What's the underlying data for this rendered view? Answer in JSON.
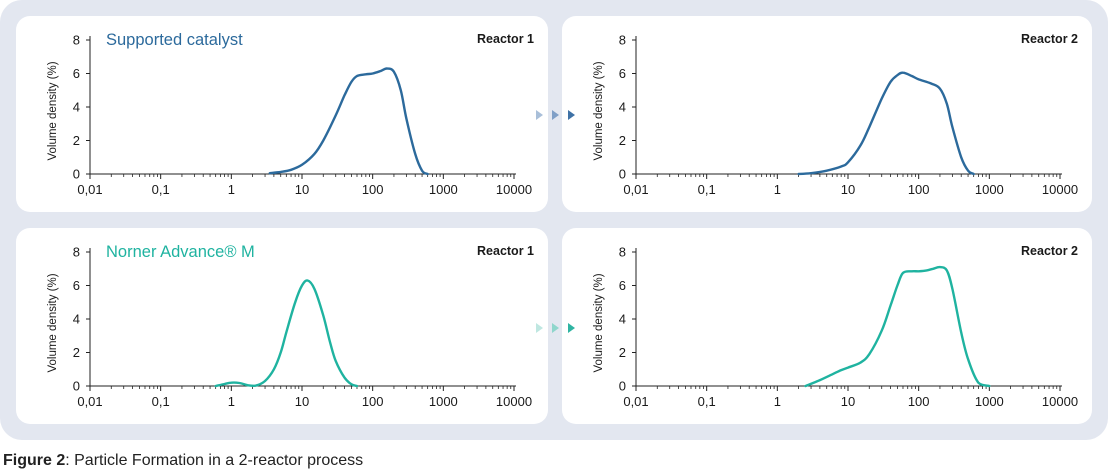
{
  "caption": {
    "label": "Figure 2",
    "text": ": Particle Formation in a 2-reactor process"
  },
  "colors": {
    "supported": "#2c6a9c",
    "norner": "#1fb3a0",
    "arrow_top": [
      "#a9bfd9",
      "#7f9fc7",
      "#3f72a6"
    ],
    "arrow_bottom": [
      "#bfe7e1",
      "#8fd6cc",
      "#2fb4a2"
    ]
  },
  "chart_data": [
    {
      "type": "line",
      "title": "Supported catalyst",
      "panel_label": "Reactor 1",
      "ylabel": "Volume density (%)",
      "xlabel": "",
      "x_scale": "log",
      "xlim": [
        0.01,
        10000
      ],
      "ylim": [
        0,
        8
      ],
      "x_ticks": [
        "0,01",
        "0,1",
        "1",
        "10",
        "100",
        "1000",
        "10000"
      ],
      "y_ticks": [
        "0",
        "2",
        "4",
        "6",
        "8"
      ],
      "series": [
        {
          "color": "#2c6a9c",
          "x": [
            3.5,
            5,
            7,
            10,
            15,
            20,
            30,
            40,
            50,
            60,
            80,
            100,
            130,
            160,
            200,
            250,
            300,
            400,
            500,
            600
          ],
          "y": [
            0.05,
            0.12,
            0.25,
            0.55,
            1.2,
            2.0,
            3.5,
            4.7,
            5.5,
            5.85,
            5.95,
            6.0,
            6.15,
            6.3,
            6.1,
            5.0,
            3.3,
            1.2,
            0.2,
            0
          ]
        }
      ]
    },
    {
      "type": "line",
      "title": "",
      "panel_label": "Reactor 2",
      "ylabel": "Volume density (%)",
      "xlabel": "",
      "x_scale": "log",
      "xlim": [
        0.01,
        10000
      ],
      "ylim": [
        0,
        8
      ],
      "x_ticks": [
        "0,01",
        "0,1",
        "1",
        "10",
        "100",
        "1000",
        "10000"
      ],
      "y_ticks": [
        "0",
        "2",
        "4",
        "6",
        "8"
      ],
      "series": [
        {
          "color": "#2c6a9c",
          "x": [
            2,
            3,
            5,
            8,
            10,
            15,
            20,
            30,
            40,
            50,
            60,
            80,
            100,
            150,
            200,
            250,
            300,
            400,
            500,
            600
          ],
          "y": [
            0,
            0.05,
            0.2,
            0.45,
            0.7,
            1.7,
            2.8,
            4.5,
            5.5,
            5.9,
            6.05,
            5.85,
            5.65,
            5.4,
            5.1,
            4.2,
            2.8,
            1.0,
            0.2,
            0
          ]
        }
      ]
    },
    {
      "type": "line",
      "title": "Norner Advance® M",
      "panel_label": "Reactor 1",
      "ylabel": "Volume density (%)",
      "xlabel": "",
      "x_scale": "log",
      "xlim": [
        0.01,
        10000
      ],
      "ylim": [
        0,
        8
      ],
      "x_ticks": [
        "0,01",
        "0,1",
        "1",
        "10",
        "100",
        "1000",
        "10000"
      ],
      "y_ticks": [
        "0",
        "2",
        "4",
        "6",
        "8"
      ],
      "series": [
        {
          "color": "#1fb3a0",
          "x": [
            0.6,
            0.8,
            1,
            1.3,
            1.7,
            2.2,
            3,
            4,
            5,
            6,
            8,
            10,
            12,
            15,
            20,
            25,
            30,
            40,
            50,
            60
          ],
          "y": [
            0,
            0.12,
            0.2,
            0.18,
            0.05,
            0.02,
            0.3,
            1.0,
            2.0,
            3.2,
            5.0,
            6.0,
            6.3,
            5.8,
            4.2,
            2.6,
            1.5,
            0.5,
            0.1,
            0
          ]
        }
      ]
    },
    {
      "type": "line",
      "title": "",
      "panel_label": "Reactor 2",
      "ylabel": "Volume density (%)",
      "xlabel": "",
      "x_scale": "log",
      "xlim": [
        0.01,
        10000
      ],
      "ylim": [
        0,
        8
      ],
      "x_ticks": [
        "0,01",
        "0,1",
        "1",
        "10",
        "100",
        "1000",
        "10000"
      ],
      "y_ticks": [
        "0",
        "2",
        "4",
        "6",
        "8"
      ],
      "series": [
        {
          "color": "#1fb3a0",
          "x": [
            2.5,
            4,
            6,
            8,
            10,
            15,
            20,
            30,
            40,
            50,
            60,
            80,
            100,
            130,
            160,
            200,
            250,
            300,
            400,
            500,
            700,
            1000
          ],
          "y": [
            0,
            0.35,
            0.7,
            0.95,
            1.1,
            1.4,
            1.9,
            3.3,
            4.8,
            6.0,
            6.75,
            6.85,
            6.85,
            6.9,
            7.0,
            7.1,
            6.9,
            5.8,
            3.2,
            1.6,
            0.2,
            0
          ]
        }
      ]
    }
  ]
}
